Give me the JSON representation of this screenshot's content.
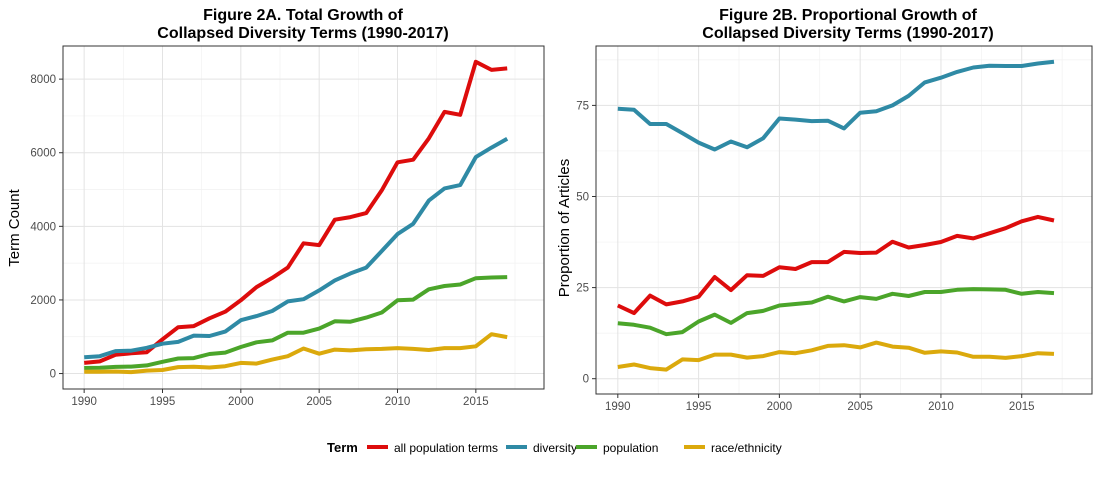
{
  "colors": {
    "all population terms": "#DD0C0C",
    "diversity": "#2F8AA5",
    "population": "#4BA52A",
    "race/ethnicity": "#DBA90C",
    "grid_major": "#E3E3E3",
    "grid_minor": "#F1F1F1",
    "panel_border": "#333333"
  },
  "legend": {
    "title": "Term",
    "items": [
      "all population terms",
      "diversity",
      "population",
      "race/ethnicity"
    ],
    "placement": "bottom"
  },
  "chart_data": [
    {
      "type": "line",
      "title_lines": [
        "Figure 2A. Total Growth of",
        "Collapsed Diversity Terms (1990-2017)"
      ],
      "xlabel": "",
      "ylabel": "Term Count",
      "xlim": [
        1988.65,
        2019.35
      ],
      "ylim": [
        -420,
        8900
      ],
      "x_ticks": [
        1990,
        1995,
        2000,
        2005,
        2010,
        2015
      ],
      "y_ticks": [
        0,
        2000,
        4000,
        6000,
        8000
      ],
      "y_tick_labels": [
        "0",
        "2000",
        "4000",
        "6000",
        "8000"
      ],
      "grid": true,
      "x": [
        1990,
        1991,
        1992,
        1993,
        1994,
        1995,
        1996,
        1997,
        1998,
        1999,
        2000,
        2001,
        2002,
        2003,
        2004,
        2005,
        2006,
        2007,
        2008,
        2009,
        2010,
        2011,
        2012,
        2013,
        2014,
        2015,
        2016,
        2017
      ],
      "series": [
        {
          "name": "all population terms",
          "values": [
            290,
            330,
            510,
            550,
            580,
            930,
            1260,
            1290,
            1500,
            1680,
            1990,
            2350,
            2600,
            2880,
            3540,
            3490,
            4180,
            4250,
            4360,
            4980,
            5740,
            5810,
            6390,
            7110,
            7030,
            8470,
            8250,
            8290
          ]
        },
        {
          "name": "diversity",
          "values": [
            440,
            470,
            610,
            620,
            700,
            810,
            860,
            1030,
            1020,
            1140,
            1450,
            1560,
            1700,
            1960,
            2020,
            2260,
            2530,
            2720,
            2880,
            3330,
            3790,
            4070,
            4700,
            5030,
            5120,
            5880,
            6140,
            6380
          ]
        },
        {
          "name": "population",
          "values": [
            150,
            160,
            180,
            190,
            220,
            320,
            410,
            420,
            530,
            570,
            720,
            850,
            900,
            1110,
            1110,
            1220,
            1420,
            1410,
            1520,
            1660,
            1990,
            2010,
            2290,
            2380,
            2420,
            2590,
            2610,
            2620
          ]
        },
        {
          "name": "race/ethnicity",
          "values": [
            50,
            50,
            55,
            40,
            80,
            95,
            175,
            185,
            165,
            200,
            290,
            270,
            380,
            470,
            680,
            540,
            650,
            630,
            660,
            670,
            690,
            670,
            640,
            690,
            690,
            740,
            1070,
            990
          ]
        }
      ]
    },
    {
      "type": "line",
      "title_lines": [
        "Figure 2B. Proportional Growth of",
        "Collapsed Diversity Terms (1990-2017)"
      ],
      "xlabel": "",
      "ylabel": "Proportion of Articles",
      "xlim": [
        1988.65,
        2019.35
      ],
      "ylim": [
        -4.2,
        91.3
      ],
      "x_ticks": [
        1990,
        1995,
        2000,
        2005,
        2010,
        2015
      ],
      "y_ticks": [
        0,
        25,
        50,
        75
      ],
      "y_tick_labels": [
        "0",
        "25",
        "50",
        "75"
      ],
      "grid": true,
      "x": [
        1990,
        1991,
        1992,
        1993,
        1994,
        1995,
        1996,
        1997,
        1998,
        1999,
        2000,
        2001,
        2002,
        2003,
        2004,
        2005,
        2006,
        2007,
        2008,
        2009,
        2010,
        2011,
        2012,
        2013,
        2014,
        2015,
        2016,
        2017
      ],
      "series": [
        {
          "name": "all population terms",
          "values": [
            20.1,
            18.0,
            22.8,
            20.4,
            21.2,
            22.5,
            27.9,
            24.3,
            28.4,
            28.2,
            30.6,
            30.1,
            32.0,
            32.0,
            34.8,
            34.5,
            34.6,
            37.6,
            36.0,
            36.7,
            37.5,
            39.2,
            38.5,
            39.9,
            41.3,
            43.2,
            44.4,
            43.4
          ]
        },
        {
          "name": "diversity",
          "values": [
            74.1,
            73.8,
            69.9,
            69.9,
            67.4,
            64.8,
            62.9,
            65.1,
            63.5,
            66.0,
            71.4,
            71.1,
            70.7,
            70.8,
            68.7,
            73.0,
            73.4,
            75.0,
            77.6,
            81.3,
            82.6,
            84.2,
            85.4,
            85.9,
            85.8,
            85.8,
            86.5,
            87.0
          ]
        },
        {
          "name": "population",
          "values": [
            15.2,
            14.8,
            14.0,
            12.2,
            12.8,
            15.7,
            17.6,
            15.3,
            18.0,
            18.6,
            20.1,
            20.5,
            20.9,
            22.5,
            21.2,
            22.4,
            21.9,
            23.3,
            22.7,
            23.8,
            23.8,
            24.4,
            24.6,
            24.5,
            24.4,
            23.3,
            23.8,
            23.5
          ]
        },
        {
          "name": "race/ethnicity",
          "values": [
            3.2,
            3.9,
            2.9,
            2.5,
            5.3,
            5.1,
            6.6,
            6.6,
            5.8,
            6.2,
            7.3,
            7.0,
            7.8,
            9.0,
            9.2,
            8.6,
            9.9,
            8.8,
            8.5,
            7.1,
            7.5,
            7.2,
            6.0,
            6.0,
            5.7,
            6.2,
            7.0,
            6.8
          ]
        }
      ]
    }
  ]
}
